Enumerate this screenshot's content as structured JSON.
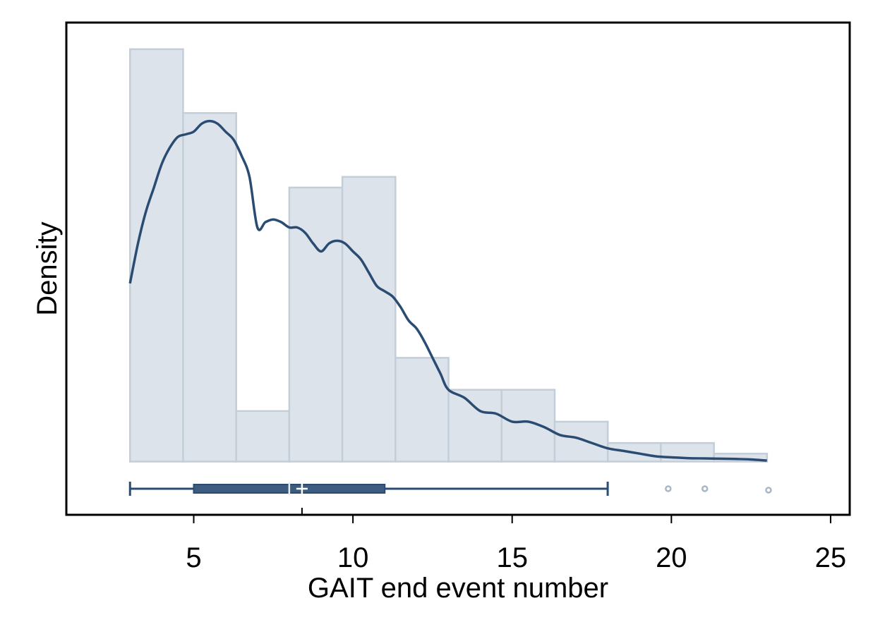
{
  "chart_data": {
    "type": "bar",
    "xlabel": "GAIT end event number",
    "ylabel": "Density",
    "xlim": [
      1,
      25.6
    ],
    "ylim": [
      -0.02,
      0.165
    ],
    "x_ticks": [
      5,
      10,
      15,
      20,
      25
    ],
    "y_tick_labels": "none",
    "grid": false,
    "legend": "none",
    "colors": {
      "bar_fill": "#dde3ea",
      "bar_edge": "#c3ced8",
      "line": "#2a4c72",
      "box": "#3d5d80",
      "outlier": "#a9b6c4"
    },
    "histogram": {
      "bin_start": 3,
      "bin_width": 1.667,
      "densities": [
        0.155,
        0.131,
        0.019,
        0.103,
        0.107,
        0.039,
        0.027,
        0.027,
        0.015,
        0.007,
        0.007,
        0.003
      ]
    },
    "density_curve": {
      "x": [
        3.0,
        3.25,
        3.5,
        3.75,
        4.0,
        4.25,
        4.5,
        4.75,
        5.0,
        5.25,
        5.5,
        5.75,
        6.0,
        6.25,
        6.5,
        6.75,
        7.0,
        7.25,
        7.5,
        7.75,
        8.0,
        8.25,
        8.5,
        8.75,
        9.0,
        9.25,
        9.5,
        9.75,
        10.0,
        10.25,
        10.5,
        10.75,
        11.0,
        11.25,
        11.5,
        11.75,
        12.0,
        12.25,
        12.5,
        12.75,
        13.0,
        13.5,
        14.0,
        14.5,
        15.0,
        15.5,
        16.0,
        16.5,
        17.0,
        17.5,
        18.0,
        18.5,
        19.0,
        19.5,
        20.0,
        20.5,
        21.0,
        21.5,
        22.0,
        22.5,
        23.0
      ],
      "y": [
        0.067,
        0.082,
        0.094,
        0.103,
        0.112,
        0.118,
        0.122,
        0.123,
        0.124,
        0.127,
        0.128,
        0.127,
        0.124,
        0.121,
        0.115,
        0.107,
        0.088,
        0.09,
        0.091,
        0.09,
        0.088,
        0.088,
        0.086,
        0.082,
        0.079,
        0.082,
        0.083,
        0.082,
        0.079,
        0.076,
        0.071,
        0.066,
        0.064,
        0.062,
        0.058,
        0.053,
        0.05,
        0.045,
        0.039,
        0.033,
        0.027,
        0.024,
        0.019,
        0.018,
        0.015,
        0.015,
        0.013,
        0.01,
        0.009,
        0.007,
        0.005,
        0.004,
        0.003,
        0.002,
        0.0016,
        0.0013,
        0.0012,
        0.0011,
        0.001,
        0.0008,
        0.0004
      ]
    },
    "boxplot": {
      "whisker_low": 3,
      "q1": 5,
      "median": 8,
      "mean": 8.4,
      "q3": 11,
      "whisker_high": 18,
      "outliers": [
        19.9,
        21.05,
        23.05
      ]
    },
    "x_marker": 8.4
  }
}
